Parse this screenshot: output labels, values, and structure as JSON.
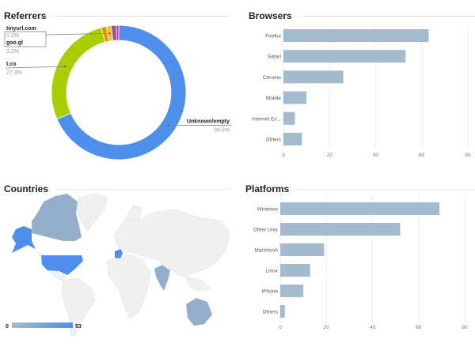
{
  "panels": {
    "referrers": {
      "title": "Referrers"
    },
    "browsers": {
      "title": "Browsers"
    },
    "countries": {
      "title": "Countries"
    },
    "platforms": {
      "title": "Platforms"
    }
  },
  "legend": {
    "min_label": "0",
    "max_label": "53"
  },
  "chart_data": [
    {
      "type": "pie",
      "title": "Referrers",
      "donut": true,
      "slices": [
        {
          "label": "Unknown/empty",
          "value": 68.5,
          "value_label": "68.5%",
          "color": "#4e8fec"
        },
        {
          "label": "t.co",
          "value": 27.3,
          "value_label": "27.3%",
          "color": "#a6ce02"
        },
        {
          "label": "tinyurl.com",
          "value": 1.2,
          "value_label": "1.2%",
          "color": "#f68b0e"
        },
        {
          "label": "goo.gl",
          "value": 1.2,
          "value_label": "1.2%",
          "color": "#f2c80b"
        },
        {
          "label": "",
          "value": 1.2,
          "value_label": "",
          "color": "#9c4fa8"
        },
        {
          "label": "",
          "value": 0.6,
          "value_label": "",
          "color": "#d6337a"
        }
      ]
    },
    {
      "type": "bar",
      "orientation": "horizontal",
      "title": "Browsers",
      "categories": [
        "Firefox",
        "Safari",
        "Chrome",
        "Mobile",
        "Internet Ex...",
        "Others"
      ],
      "values": [
        63,
        53,
        26,
        10,
        5,
        8
      ],
      "xticks": [
        "0",
        "20",
        "40",
        "60",
        "80"
      ],
      "xlim": [
        0,
        80
      ],
      "grid": true,
      "color": "#a5bacd"
    },
    {
      "type": "heatmap",
      "title": "Countries",
      "subtype": "geo",
      "range": [
        0,
        53
      ],
      "color_min": "#a5bacd",
      "color_max": "#4e8fec",
      "highlighted": [
        {
          "region": "United States",
          "level": "high"
        },
        {
          "region": "Alaska",
          "level": "high"
        },
        {
          "region": "France",
          "level": "high"
        },
        {
          "region": "Canada",
          "level": "medium"
        },
        {
          "region": "India",
          "level": "medium"
        },
        {
          "region": "Australia",
          "level": "medium"
        }
      ]
    },
    {
      "type": "bar",
      "orientation": "horizontal",
      "title": "Platforms",
      "categories": [
        "Windows",
        "Other Unix",
        "Macintosh",
        "Linux",
        "iPhone",
        "Others"
      ],
      "values": [
        69,
        52,
        19,
        13,
        10,
        2
      ],
      "xticks": [
        "0",
        "20",
        "40",
        "60",
        "80"
      ],
      "xlim": [
        0,
        80
      ],
      "grid": true,
      "color": "#a5bacd"
    }
  ]
}
